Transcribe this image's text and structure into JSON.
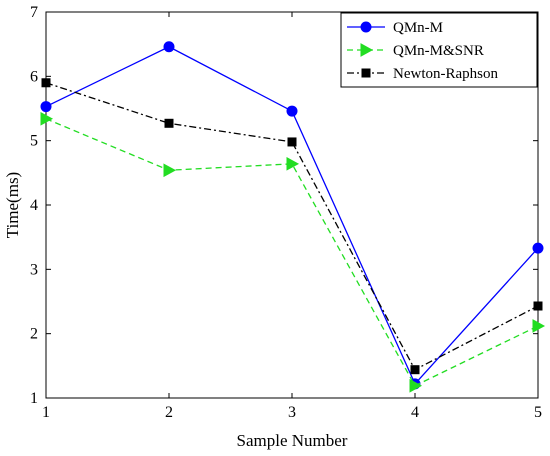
{
  "chart_data": {
    "type": "line",
    "xlabel": "Sample Number",
    "ylabel": "Time(ms)",
    "x": [
      1,
      2,
      3,
      4,
      5
    ],
    "xlim": [
      1,
      5
    ],
    "ylim": [
      1,
      7
    ],
    "xticks": [
      "1",
      "2",
      "3",
      "4",
      "5"
    ],
    "yticks": [
      "1",
      "2",
      "3",
      "4",
      "5",
      "6",
      "7"
    ],
    "grid": false,
    "legend_position": "top-right",
    "series": [
      {
        "name": "QMn-M",
        "values": [
          5.53,
          6.46,
          5.46,
          1.22,
          3.33
        ],
        "color": "#0000ff",
        "line_style": "solid",
        "marker": "circle"
      },
      {
        "name": "QMn-M&SNR",
        "values": [
          5.34,
          4.54,
          4.64,
          1.19,
          2.12
        ],
        "color": "#22dd22",
        "line_style": "dashed",
        "marker": "triangle-right"
      },
      {
        "name": "Newton-Raphson",
        "values": [
          5.9,
          5.27,
          4.98,
          1.44,
          2.43
        ],
        "color": "#000000",
        "line_style": "dash-dot",
        "marker": "square"
      }
    ]
  }
}
